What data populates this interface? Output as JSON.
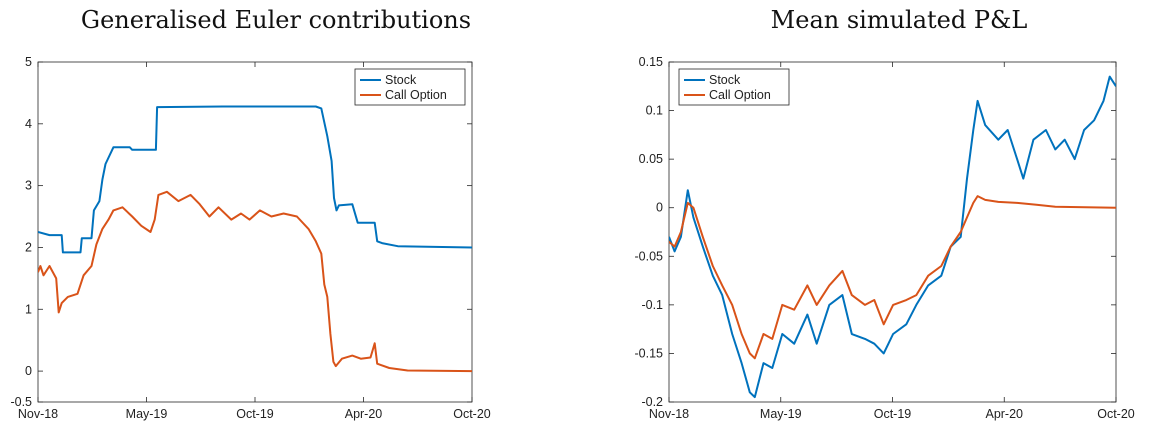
{
  "chart_data": [
    {
      "type": "line",
      "title": "Generalised Euler contributions",
      "xlabel": "",
      "ylabel": "",
      "x_ticks": [
        "Nov-18",
        "May-19",
        "Oct-19",
        "Apr-20",
        "Oct-20"
      ],
      "xlim": [
        "2018-11-01",
        "2020-10-15"
      ],
      "y_ticks": [
        "-0.5",
        "0",
        "1",
        "2",
        "3",
        "4",
        "5"
      ],
      "ylim": [
        -0.5,
        5
      ],
      "grid": false,
      "legend": "top-right",
      "series": [
        {
          "name": "Stock",
          "color": "#0072BD",
          "points": [
            [
              "2018-11-01",
              2.25
            ],
            [
              "2018-11-20",
              2.2
            ],
            [
              "2018-12-10",
              2.2
            ],
            [
              "2018-12-12",
              1.92
            ],
            [
              "2019-01-10",
              1.92
            ],
            [
              "2019-01-12",
              2.15
            ],
            [
              "2019-01-28",
              2.15
            ],
            [
              "2019-02-01",
              2.6
            ],
            [
              "2019-02-10",
              2.75
            ],
            [
              "2019-02-15",
              3.1
            ],
            [
              "2019-02-20",
              3.35
            ],
            [
              "2019-03-05",
              3.62
            ],
            [
              "2019-04-01",
              3.62
            ],
            [
              "2019-04-05",
              3.58
            ],
            [
              "2019-05-14",
              3.58
            ],
            [
              "2019-05-16",
              4.27
            ],
            [
              "2019-09-01",
              4.28
            ],
            [
              "2020-01-10",
              4.28
            ],
            [
              "2020-02-01",
              4.28
            ],
            [
              "2020-02-10",
              4.25
            ],
            [
              "2020-02-20",
              3.8
            ],
            [
              "2020-02-27",
              3.4
            ],
            [
              "2020-03-02",
              2.8
            ],
            [
              "2020-03-06",
              2.6
            ],
            [
              "2020-03-10",
              2.68
            ],
            [
              "2020-04-01",
              2.7
            ],
            [
              "2020-04-10",
              2.4
            ],
            [
              "2020-05-08",
              2.4
            ],
            [
              "2020-05-12",
              2.1
            ],
            [
              "2020-05-20",
              2.07
            ],
            [
              "2020-06-15",
              2.02
            ],
            [
              "2020-10-15",
              2.0
            ]
          ]
        },
        {
          "name": "Call Option",
          "color": "#D95319",
          "points": [
            [
              "2018-11-01",
              1.6
            ],
            [
              "2018-11-05",
              1.7
            ],
            [
              "2018-11-10",
              1.55
            ],
            [
              "2018-11-20",
              1.7
            ],
            [
              "2018-12-01",
              1.5
            ],
            [
              "2018-12-05",
              0.95
            ],
            [
              "2018-12-10",
              1.1
            ],
            [
              "2018-12-20",
              1.2
            ],
            [
              "2019-01-05",
              1.25
            ],
            [
              "2019-01-15",
              1.55
            ],
            [
              "2019-01-28",
              1.7
            ],
            [
              "2019-02-05",
              2.05
            ],
            [
              "2019-02-15",
              2.3
            ],
            [
              "2019-02-25",
              2.45
            ],
            [
              "2019-03-05",
              2.6
            ],
            [
              "2019-03-20",
              2.65
            ],
            [
              "2019-04-05",
              2.5
            ],
            [
              "2019-04-20",
              2.35
            ],
            [
              "2019-05-05",
              2.25
            ],
            [
              "2019-05-12",
              2.45
            ],
            [
              "2019-05-18",
              2.85
            ],
            [
              "2019-06-01",
              2.9
            ],
            [
              "2019-06-20",
              2.75
            ],
            [
              "2019-07-10",
              2.85
            ],
            [
              "2019-07-25",
              2.7
            ],
            [
              "2019-08-10",
              2.5
            ],
            [
              "2019-08-25",
              2.65
            ],
            [
              "2019-09-15",
              2.45
            ],
            [
              "2019-10-01",
              2.55
            ],
            [
              "2019-10-15",
              2.45
            ],
            [
              "2019-11-01",
              2.6
            ],
            [
              "2019-11-20",
              2.5
            ],
            [
              "2019-12-10",
              2.55
            ],
            [
              "2020-01-01",
              2.5
            ],
            [
              "2020-01-20",
              2.3
            ],
            [
              "2020-02-01",
              2.1
            ],
            [
              "2020-02-10",
              1.9
            ],
            [
              "2020-02-15",
              1.4
            ],
            [
              "2020-02-20",
              1.2
            ],
            [
              "2020-02-25",
              0.6
            ],
            [
              "2020-03-01",
              0.15
            ],
            [
              "2020-03-05",
              0.08
            ],
            [
              "2020-03-15",
              0.2
            ],
            [
              "2020-04-01",
              0.25
            ],
            [
              "2020-04-15",
              0.2
            ],
            [
              "2020-05-01",
              0.22
            ],
            [
              "2020-05-08",
              0.45
            ],
            [
              "2020-05-12",
              0.12
            ],
            [
              "2020-06-01",
              0.05
            ],
            [
              "2020-07-01",
              0.01
            ],
            [
              "2020-10-15",
              0.0
            ]
          ]
        }
      ]
    },
    {
      "type": "line",
      "title": "Mean simulated P&L",
      "xlabel": "",
      "ylabel": "",
      "x_ticks": [
        "Nov-18",
        "May-19",
        "Oct-19",
        "Apr-20",
        "Oct-20"
      ],
      "xlim": [
        "2018-11-01",
        "2020-10-15"
      ],
      "y_ticks": [
        "-0.2",
        "-0.15",
        "-0.1",
        "-0.05",
        "0",
        "0.05",
        "0.1",
        "0.15"
      ],
      "ylim": [
        -0.2,
        0.15
      ],
      "grid": false,
      "legend": "top-left",
      "series": [
        {
          "name": "Stock",
          "color": "#0072BD",
          "points": [
            [
              "2018-11-01",
              -0.03
            ],
            [
              "2018-11-10",
              -0.045
            ],
            [
              "2018-11-20",
              -0.03
            ],
            [
              "2018-12-01",
              0.018
            ],
            [
              "2018-12-10",
              -0.01
            ],
            [
              "2018-12-25",
              -0.04
            ],
            [
              "2019-01-10",
              -0.07
            ],
            [
              "2019-01-25",
              -0.09
            ],
            [
              "2019-02-10",
              -0.13
            ],
            [
              "2019-02-25",
              -0.16
            ],
            [
              "2019-03-10",
              -0.19
            ],
            [
              "2019-03-18",
              -0.195
            ],
            [
              "2019-04-01",
              -0.16
            ],
            [
              "2019-04-15",
              -0.165
            ],
            [
              "2019-05-01",
              -0.13
            ],
            [
              "2019-05-20",
              -0.14
            ],
            [
              "2019-06-10",
              -0.11
            ],
            [
              "2019-06-25",
              -0.14
            ],
            [
              "2019-07-15",
              -0.1
            ],
            [
              "2019-08-05",
              -0.09
            ],
            [
              "2019-08-20",
              -0.13
            ],
            [
              "2019-09-10",
              -0.135
            ],
            [
              "2019-09-25",
              -0.14
            ],
            [
              "2019-10-10",
              -0.15
            ],
            [
              "2019-10-25",
              -0.13
            ],
            [
              "2019-11-15",
              -0.12
            ],
            [
              "2019-12-01",
              -0.1
            ],
            [
              "2019-12-20",
              -0.08
            ],
            [
              "2020-01-10",
              -0.07
            ],
            [
              "2020-01-25",
              -0.04
            ],
            [
              "2020-02-10",
              -0.03
            ],
            [
              "2020-02-20",
              0.03
            ],
            [
              "2020-03-01",
              0.08
            ],
            [
              "2020-03-08",
              0.11
            ],
            [
              "2020-03-20",
              0.085
            ],
            [
              "2020-04-10",
              0.07
            ],
            [
              "2020-04-25",
              0.08
            ],
            [
              "2020-05-10",
              0.05
            ],
            [
              "2020-05-20",
              0.03
            ],
            [
              "2020-06-05",
              0.07
            ],
            [
              "2020-06-25",
              0.08
            ],
            [
              "2020-07-10",
              0.06
            ],
            [
              "2020-07-25",
              0.07
            ],
            [
              "2020-08-10",
              0.05
            ],
            [
              "2020-08-25",
              0.08
            ],
            [
              "2020-09-10",
              0.09
            ],
            [
              "2020-09-25",
              0.11
            ],
            [
              "2020-10-05",
              0.135
            ],
            [
              "2020-10-15",
              0.125
            ]
          ]
        },
        {
          "name": "Call Option",
          "color": "#D95319",
          "points": [
            [
              "2018-11-01",
              -0.035
            ],
            [
              "2018-11-10",
              -0.04
            ],
            [
              "2018-11-20",
              -0.025
            ],
            [
              "2018-12-01",
              0.005
            ],
            [
              "2018-12-10",
              0.0
            ],
            [
              "2018-12-25",
              -0.03
            ],
            [
              "2019-01-10",
              -0.06
            ],
            [
              "2019-01-25",
              -0.08
            ],
            [
              "2019-02-10",
              -0.1
            ],
            [
              "2019-02-25",
              -0.13
            ],
            [
              "2019-03-10",
              -0.15
            ],
            [
              "2019-03-18",
              -0.155
            ],
            [
              "2019-04-01",
              -0.13
            ],
            [
              "2019-04-15",
              -0.135
            ],
            [
              "2019-05-01",
              -0.1
            ],
            [
              "2019-05-20",
              -0.105
            ],
            [
              "2019-06-10",
              -0.08
            ],
            [
              "2019-06-25",
              -0.1
            ],
            [
              "2019-07-15",
              -0.08
            ],
            [
              "2019-08-05",
              -0.065
            ],
            [
              "2019-08-20",
              -0.09
            ],
            [
              "2019-09-10",
              -0.1
            ],
            [
              "2019-09-25",
              -0.095
            ],
            [
              "2019-10-10",
              -0.12
            ],
            [
              "2019-10-25",
              -0.1
            ],
            [
              "2019-11-15",
              -0.095
            ],
            [
              "2019-12-01",
              -0.09
            ],
            [
              "2019-12-20",
              -0.07
            ],
            [
              "2020-01-10",
              -0.06
            ],
            [
              "2020-01-25",
              -0.04
            ],
            [
              "2020-02-10",
              -0.025
            ],
            [
              "2020-02-20",
              -0.01
            ],
            [
              "2020-03-01",
              0.005
            ],
            [
              "2020-03-08",
              0.012
            ],
            [
              "2020-03-20",
              0.008
            ],
            [
              "2020-04-10",
              0.006
            ],
            [
              "2020-05-10",
              0.005
            ],
            [
              "2020-06-10",
              0.003
            ],
            [
              "2020-07-10",
              0.001
            ],
            [
              "2020-10-15",
              0.0
            ]
          ]
        }
      ]
    }
  ]
}
